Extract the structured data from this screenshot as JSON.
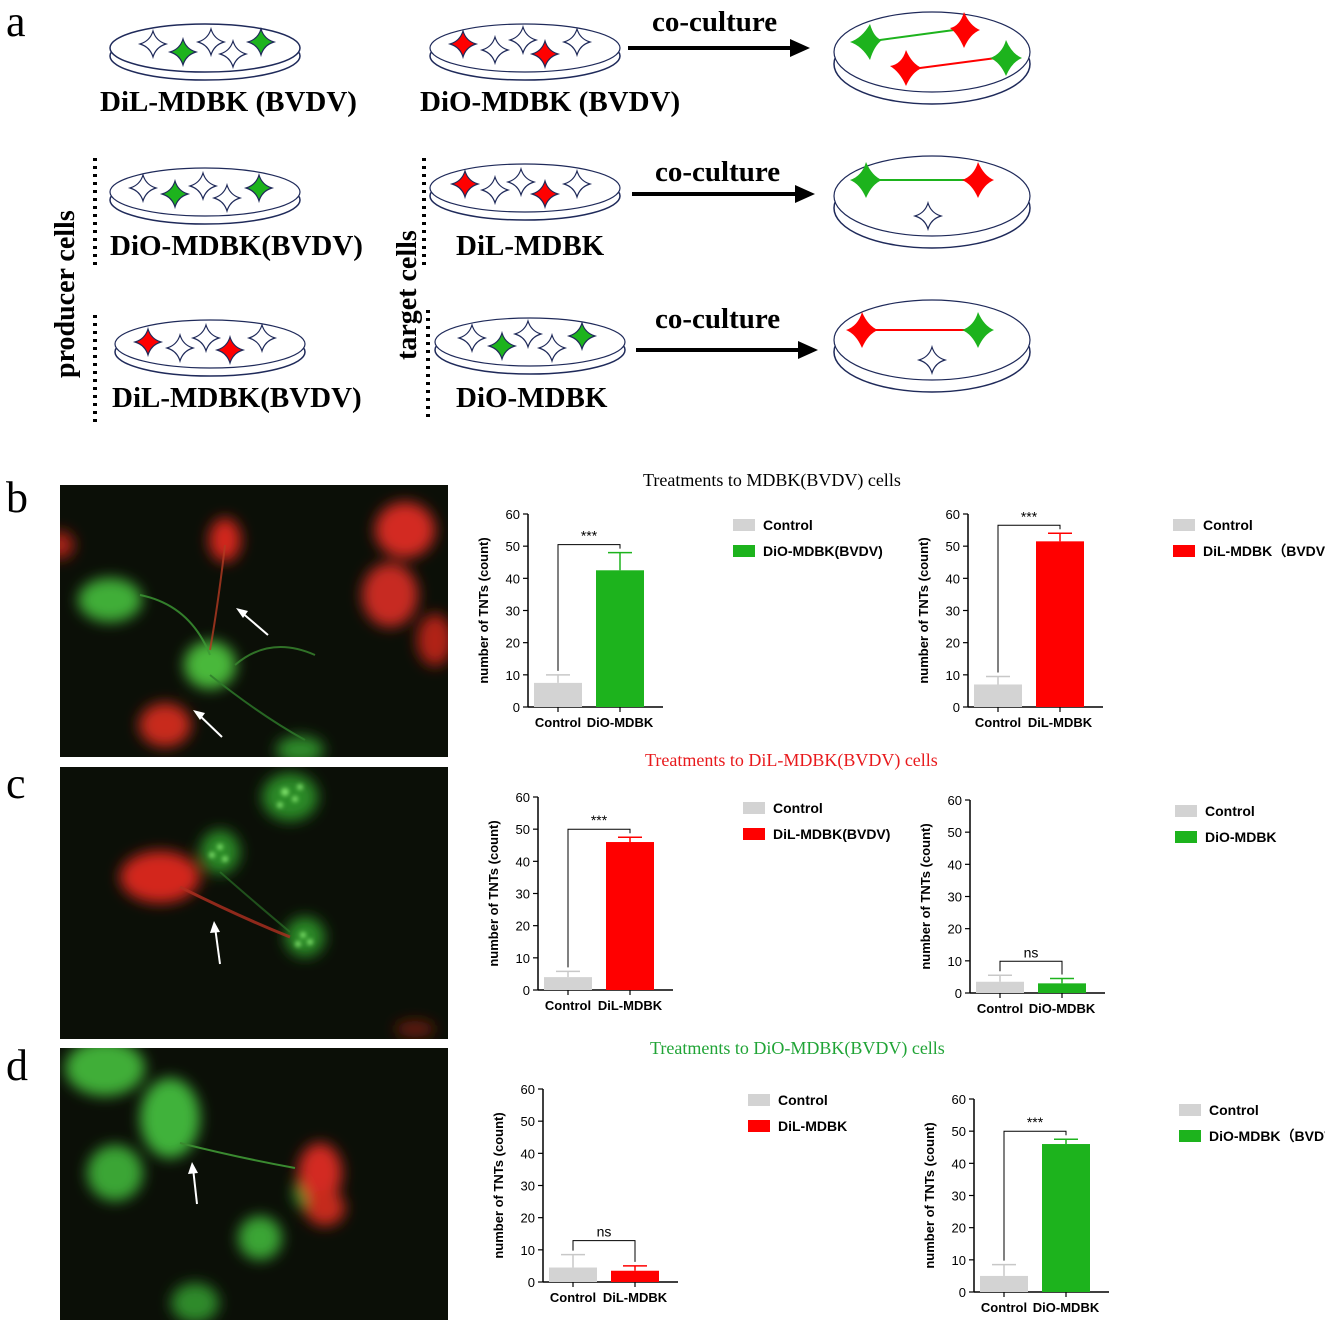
{
  "panel_a": {
    "letter": "a",
    "row1": {
      "left_label": "DiL-MDBK (BVDV)",
      "right_label": "DiO-MDBK (BVDV)",
      "arrow_label": "co-culture"
    },
    "row2": {
      "left_label": "DiO-MDBK(BVDV)",
      "right_label": "DiL-MDBK",
      "arrow_label": "co-culture"
    },
    "row3": {
      "left_label": "DiL-MDBK(BVDV)",
      "right_label": "DiO-MDBK",
      "arrow_label": "co-culture"
    },
    "producer_label": "producer cells",
    "target_label": "target cells"
  },
  "panel_b": {
    "letter": "b",
    "section_title": "Treatments to MDBK(BVDV) cells"
  },
  "panel_c": {
    "letter": "c",
    "section_title": "Treatments to DiL-MDBK(BVDV) cells"
  },
  "panel_d": {
    "letter": "d",
    "section_title": "Treatments to DiO-MDBK(BVDV) cells"
  },
  "colors": {
    "control": "#d3d3d3",
    "green": "#1db31d",
    "red": "#ff0000",
    "title_red": "#e8191c",
    "title_green": "#20a436"
  },
  "chart_data": [
    {
      "id": "b1",
      "type": "bar",
      "categories": [
        "Control",
        "DiO-MDBK"
      ],
      "values": [
        7.5,
        42.5
      ],
      "errors": [
        2.5,
        5.5
      ],
      "colors": [
        "#d3d3d3",
        "#1db31d"
      ],
      "ylabel": "number of TNTs (count)",
      "ylim": [
        0,
        60
      ],
      "yticks": [
        0,
        10,
        20,
        30,
        40,
        50,
        60
      ],
      "significance": "***",
      "legend": [
        "Control",
        "DiO-MDBK(BVDV)"
      ]
    },
    {
      "id": "b2",
      "type": "bar",
      "categories": [
        "Control",
        "DiL-MDBK"
      ],
      "values": [
        7,
        51.5
      ],
      "errors": [
        2.5,
        2.5
      ],
      "colors": [
        "#d3d3d3",
        "#ff0000"
      ],
      "ylabel": "number of TNTs (count)",
      "ylim": [
        0,
        60
      ],
      "yticks": [
        0,
        10,
        20,
        30,
        40,
        50,
        60
      ],
      "significance": "***",
      "legend": [
        "Control",
        "DiL-MDBK（BVDV）"
      ]
    },
    {
      "id": "c1",
      "type": "bar",
      "categories": [
        "Control",
        "DiL-MDBK"
      ],
      "values": [
        4,
        46
      ],
      "errors": [
        1.8,
        1.5
      ],
      "colors": [
        "#d3d3d3",
        "#ff0000"
      ],
      "ylabel": "number of TNTs (count)",
      "ylim": [
        0,
        60
      ],
      "yticks": [
        0,
        10,
        20,
        30,
        40,
        50,
        60
      ],
      "significance": "***",
      "legend": [
        "Control",
        "DiL-MDBK(BVDV)"
      ]
    },
    {
      "id": "c2",
      "type": "bar",
      "categories": [
        "Control",
        "DiO-MDBK"
      ],
      "values": [
        3.5,
        3
      ],
      "errors": [
        2,
        1.5
      ],
      "colors": [
        "#d3d3d3",
        "#1db31d"
      ],
      "ylabel": "number of TNTs (count)",
      "ylim": [
        0,
        60
      ],
      "yticks": [
        0,
        10,
        20,
        30,
        40,
        50,
        60
      ],
      "significance": "ns",
      "legend": [
        "Control",
        "DiO-MDBK"
      ]
    },
    {
      "id": "d1",
      "type": "bar",
      "categories": [
        "Control",
        "DiL-MDBK"
      ],
      "values": [
        4.5,
        3.5
      ],
      "errors": [
        4,
        1.5
      ],
      "colors": [
        "#d3d3d3",
        "#ff0000"
      ],
      "ylabel": "number of TNTs (count)",
      "ylim": [
        0,
        60
      ],
      "yticks": [
        0,
        10,
        20,
        30,
        40,
        50,
        60
      ],
      "significance": "ns",
      "legend": [
        "Control",
        "DiL-MDBK"
      ]
    },
    {
      "id": "d2",
      "type": "bar",
      "categories": [
        "Control",
        "DiO-MDBK"
      ],
      "values": [
        5,
        46
      ],
      "errors": [
        3.5,
        1.5
      ],
      "colors": [
        "#d3d3d3",
        "#1db31d"
      ],
      "ylabel": "number of TNTs (count)",
      "ylim": [
        0,
        60
      ],
      "yticks": [
        0,
        10,
        20,
        30,
        40,
        50,
        60
      ],
      "significance": "***",
      "legend": [
        "Control",
        "DiO-MDBK（BVDV）"
      ]
    }
  ]
}
